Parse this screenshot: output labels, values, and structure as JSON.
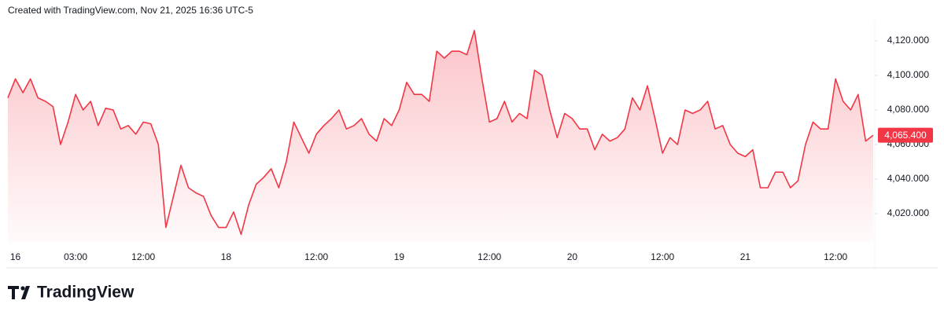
{
  "chart_data": {
    "type": "area",
    "title": "Created with TradingView.com, Nov 21, 2025 16:36 UTC-5",
    "brand": "TradingView",
    "color": "#f23645",
    "categories": [
      null,
      "16",
      null,
      null,
      null,
      null,
      null,
      null,
      null,
      "03:00",
      null,
      null,
      null,
      null,
      null,
      null,
      null,
      null,
      "12:00",
      null,
      null,
      null,
      null,
      null,
      null,
      null,
      null,
      null,
      null,
      "18",
      null,
      null,
      null,
      null,
      null,
      null,
      null,
      null,
      null,
      null,
      null,
      "12:00",
      null,
      null,
      null,
      null,
      null,
      null,
      null,
      null,
      null,
      null,
      "19",
      null,
      null,
      null,
      null,
      null,
      null,
      null,
      null,
      null,
      null,
      null,
      "12:00",
      null,
      null,
      null,
      null,
      null,
      null,
      null,
      null,
      null,
      null,
      "20",
      null,
      null,
      null,
      null,
      null,
      null,
      null,
      null,
      null,
      null,
      null,
      "12:00",
      null,
      null,
      null,
      null,
      null,
      null,
      null,
      null,
      null,
      null,
      "21",
      null,
      null,
      null,
      null,
      null,
      null,
      null,
      null,
      null,
      null,
      null,
      "12:00",
      null,
      null,
      null,
      null,
      null
    ],
    "values": [
      4087,
      4098,
      4090,
      4098,
      4087,
      4085,
      4082,
      4060,
      4073,
      4089,
      4080,
      4085,
      4071,
      4081,
      4080,
      4069,
      4071,
      4066,
      4073,
      4072,
      4060,
      4012,
      4030,
      4048,
      4035,
      4032,
      4030,
      4019,
      4012,
      4012,
      4021,
      4008,
      4025,
      4037,
      4041,
      4046,
      4035,
      4050,
      4073,
      4064,
      4055,
      4066,
      4071,
      4075,
      4080,
      4069,
      4071,
      4075,
      4066,
      4062,
      4075,
      4071,
      4080,
      4096,
      4089,
      4089,
      4085,
      4114,
      4110,
      4114,
      4114,
      4112,
      4126,
      4098,
      4073,
      4075,
      4085,
      4073,
      4078,
      4075,
      4103,
      4100,
      4080,
      4064,
      4078,
      4075,
      4069,
      4069,
      4057,
      4066,
      4062,
      4064,
      4069,
      4087,
      4080,
      4094,
      4075,
      4055,
      4064,
      4060,
      4080,
      4078,
      4080,
      4085,
      4069,
      4071,
      4060,
      4055,
      4053,
      4057,
      4035,
      4035,
      4044,
      4044,
      4035,
      4039,
      4060,
      4073,
      4069,
      4069,
      4098,
      4085,
      4080,
      4089,
      4062,
      4065.4
    ],
    "last_price_label": "4,065.400",
    "ylim": [
      4003,
      4131
    ],
    "yticks": [
      {
        "value": 4020,
        "label": "4,020.000"
      },
      {
        "value": 4040,
        "label": "4,040.000"
      },
      {
        "value": 4060,
        "label": "4,060.000"
      },
      {
        "value": 4080,
        "label": "4,080.000"
      },
      {
        "value": 4100,
        "label": "4,100.000"
      },
      {
        "value": 4120,
        "label": "4,120.000"
      }
    ],
    "grid": false
  }
}
